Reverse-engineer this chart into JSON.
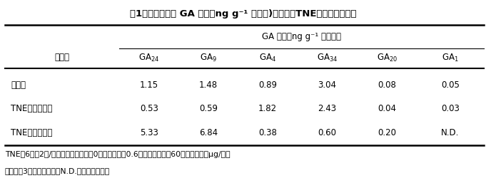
{
  "title": "表1　茎部の内生 GA 濃度（ng g⁻¹ 新鮮重)に及ぼすTNE処理濃度の影響",
  "group_header": "GA 濃度（ng g⁻¹ 新鮮重）",
  "col_header_row": [
    "処理区",
    "GA",
    "GA",
    "GA",
    "GA",
    "GA",
    "GA"
  ],
  "col_subscripts": [
    "",
    "24",
    "9",
    "4",
    "34",
    "20",
    "1"
  ],
  "rows": [
    [
      "対照区",
      "1.15",
      "1.48",
      "0.89",
      "3.04",
      "0.08",
      "0.05"
    ],
    [
      "TNE－低濃度区",
      "0.53",
      "0.59",
      "1.82",
      "2.43",
      "0.04",
      "0.03"
    ],
    [
      "TNE－高濃度区",
      "5.33",
      "6.84",
      "0.38",
      "0.60",
      "0.20",
      "N.D."
    ]
  ],
  "footnote1": "TNEは6回（2回/週）処理；総処理量0（対照区），0.6（低濃度区），60（高濃度区）μg/個体",
  "footnote2": "処理開始3週間後の試料，N.D.：検出限界以下",
  "bg_color": "#ffffff"
}
